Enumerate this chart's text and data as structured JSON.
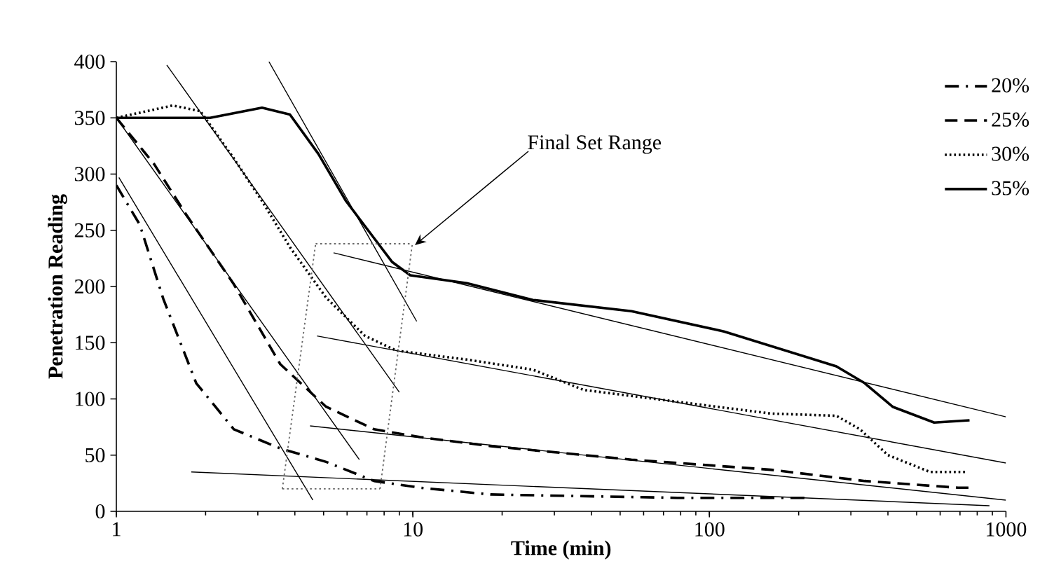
{
  "chart_data": {
    "type": "line",
    "xlabel": "Time (min)",
    "ylabel": "Penetration Reading",
    "log": "x",
    "xlim": [
      1,
      1000
    ],
    "xticks": [
      1,
      10,
      100,
      1000
    ],
    "ylim": [
      0,
      400
    ],
    "yticks": [
      0,
      50,
      100,
      150,
      200,
      250,
      300,
      350,
      400
    ],
    "legend": "top right",
    "annotations": [
      "Final Set Range"
    ],
    "series": [
      {
        "name": "20%",
        "color": "#000000",
        "line_style": "dashdot",
        "x": [
          1,
          1.2,
          1.44,
          1.86,
          2.49,
          3.57,
          5.1,
          7.4,
          10.6,
          18.3,
          78,
          215
        ],
        "values": [
          290,
          255,
          189,
          114,
          73,
          56,
          44,
          27,
          21,
          15,
          12,
          12
        ]
      },
      {
        "name": "25%",
        "color": "#000000",
        "line_style": "dashed",
        "x": [
          1,
          1.34,
          1.72,
          2.49,
          3.57,
          5.1,
          7.4,
          10.6,
          18.3,
          54.6,
          161,
          334,
          690,
          754
        ],
        "values": [
          350,
          309,
          264,
          202,
          131,
          93,
          73,
          66,
          58,
          46,
          37,
          27,
          21,
          21
        ]
      },
      {
        "name": "30%",
        "color": "#000000",
        "line_style": "dotted",
        "x": [
          1,
          1.55,
          1.92,
          2.49,
          3.1,
          3.85,
          5.1,
          6.9,
          8.8,
          15.2,
          25.4,
          37.7,
          161,
          268,
          322,
          400,
          555,
          730
        ],
        "values": [
          350,
          361,
          356,
          314,
          276,
          235,
          190,
          156,
          143,
          135,
          126,
          108,
          87,
          85,
          73,
          50,
          35,
          35
        ]
      },
      {
        "name": "35%",
        "color": "#000000",
        "line_style": "solid",
        "x": [
          1,
          2.07,
          3.1,
          3.85,
          4.8,
          5.95,
          7.4,
          8.5,
          9.8,
          15.2,
          25.4,
          54.6,
          112,
          268,
          334,
          415,
          573,
          754
        ],
        "values": [
          350,
          350,
          359,
          353,
          318,
          276,
          243,
          222,
          210,
          203,
          188,
          178,
          160,
          129,
          114,
          93,
          79,
          81
        ]
      },
      {
        "color": "#000000",
        "line_style": "solid",
        "x": [
          3.27,
          10.3
        ],
        "values": [
          400,
          169
        ]
      },
      {
        "color": "#000000",
        "line_style": "solid",
        "x": [
          1.48,
          9.0
        ],
        "values": [
          397,
          106
        ]
      },
      {
        "color": "#000000",
        "line_style": "solid",
        "x": [
          1,
          6.6
        ],
        "values": [
          350,
          46
        ]
      },
      {
        "color": "#000000",
        "line_style": "solid",
        "x": [
          1.02,
          4.6
        ],
        "values": [
          297,
          10
        ]
      },
      {
        "color": "#000000",
        "line_style": "solid",
        "x": [
          5.4,
          1000
        ],
        "values": [
          230,
          84
        ]
      },
      {
        "color": "#000000",
        "line_style": "solid",
        "x": [
          4.75,
          1000
        ],
        "values": [
          156,
          43
        ]
      },
      {
        "color": "#000000",
        "line_style": "solid",
        "x": [
          4.5,
          1000
        ],
        "values": [
          76,
          10
        ]
      },
      {
        "color": "#000000",
        "line_style": "solid",
        "x": [
          1.79,
          880
        ],
        "values": [
          35,
          5
        ]
      },
      {
        "color": "#666666",
        "line_style": "dotted",
        "x": [
          4.7,
          9.96
        ],
        "values": [
          238,
          238
        ]
      },
      {
        "color": "#666666",
        "line_style": "dotted",
        "x": [
          3.63,
          7.75
        ],
        "values": [
          20,
          20
        ]
      },
      {
        "color": "#666666",
        "line_style": "dotted",
        "x": [
          3.63,
          4.7
        ],
        "values": [
          20,
          238
        ]
      },
      {
        "color": "#666666",
        "line_style": "dotted",
        "x": [
          7.75,
          9.96
        ],
        "values": [
          20,
          238
        ]
      }
    ]
  }
}
